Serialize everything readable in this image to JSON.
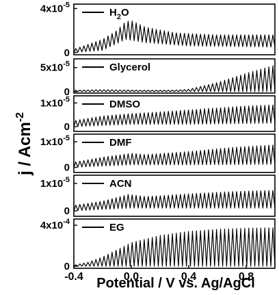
{
  "chart_data": {
    "type": "line",
    "xlabel": "Potential / V vs. Ag/AgCl",
    "ylabel": "j / Acm",
    "ylabel_superscript": "-2",
    "xlim": [
      -0.4,
      1.0
    ],
    "x_ticks": [
      "-0.4",
      "0.0",
      "0.4",
      "0.8"
    ],
    "x_tick_values": [
      -0.4,
      0.0,
      0.4,
      0.8
    ],
    "legend_placement": "top-left of each panel",
    "grid": false,
    "line_color": "#000000",
    "panels": [
      {
        "name": "H2O",
        "label_main": "H",
        "label_sub": "2",
        "label_rest": "O",
        "y_ticks": [
          {
            "value": 4e-05,
            "mantissa": "4x10",
            "exp": "-5"
          },
          {
            "value": 0,
            "label": "0"
          }
        ],
        "ylim": [
          -2e-06,
          4.4e-05
        ],
        "envelope_upper": [
          [
            -0.4,
            3e-06
          ],
          [
            -0.2,
            1.2e-05
          ],
          [
            -0.1,
            2e-05
          ],
          [
            -0.04,
            2.8e-05
          ],
          [
            0.0,
            2.9e-05
          ],
          [
            0.1,
            2.3e-05
          ],
          [
            0.3,
            1.8e-05
          ],
          [
            0.6,
            1.6e-05
          ],
          [
            1.0,
            1.6e-05
          ]
        ],
        "envelope_lower": [
          [
            -0.4,
            0.0
          ],
          [
            -0.2,
            2e-06
          ],
          [
            -0.04,
            1.2e-05
          ],
          [
            0.1,
            9e-06
          ],
          [
            0.4,
            6e-06
          ],
          [
            1.0,
            5e-06
          ]
        ]
      },
      {
        "name": "Glycerol",
        "label_main": "Glycerol",
        "y_ticks": [
          {
            "value": 5e-05,
            "mantissa": "5x10",
            "exp": "-5"
          },
          {
            "value": 0,
            "label": "0"
          }
        ],
        "ylim": [
          -3e-06,
          6.8e-05
        ],
        "envelope_upper": [
          [
            -0.4,
            3e-06
          ],
          [
            -0.2,
            4e-06
          ],
          [
            0.1,
            3e-06
          ],
          [
            0.3,
            3e-06
          ],
          [
            0.4,
            5e-06
          ],
          [
            0.6,
            1.9e-05
          ],
          [
            0.8,
            3.8e-05
          ],
          [
            1.0,
            5.5e-05
          ]
        ],
        "envelope_lower": [
          [
            -0.4,
            0.0
          ],
          [
            0.3,
            0.0
          ],
          [
            0.6,
            0.0
          ],
          [
            1.0,
            0.0
          ]
        ]
      },
      {
        "name": "DMSO",
        "label_main": "DMSO",
        "y_ticks": [
          {
            "value": 1e-05,
            "mantissa": "1x10",
            "exp": "-5"
          },
          {
            "value": 0,
            "label": "0"
          }
        ],
        "ylim": [
          -2e-06,
          1.3e-05
        ],
        "envelope_upper": [
          [
            -0.4,
            2.5e-06
          ],
          [
            -0.2,
            4.5e-06
          ],
          [
            0.0,
            5.5e-06
          ],
          [
            0.2,
            6.2e-06
          ],
          [
            0.5,
            7.5e-06
          ],
          [
            0.8,
            8.7e-06
          ],
          [
            1.0,
            9.2e-06
          ]
        ],
        "envelope_lower": [
          [
            -0.4,
            0.0
          ],
          [
            0.0,
            1e-06
          ],
          [
            0.4,
            1e-06
          ],
          [
            1.0,
            1.5e-06
          ]
        ]
      },
      {
        "name": "DMF",
        "label_main": "DMF",
        "y_ticks": [
          {
            "value": 1e-05,
            "mantissa": "1x10",
            "exp": "-5"
          },
          {
            "value": 0,
            "label": "0"
          }
        ],
        "ylim": [
          -2e-06,
          1.3e-05
        ],
        "envelope_upper": [
          [
            -0.4,
            2e-06
          ],
          [
            -0.2,
            4e-06
          ],
          [
            0.0,
            5.5e-06
          ],
          [
            0.1,
            5e-06
          ],
          [
            0.4,
            6.2e-06
          ],
          [
            0.7,
            7.8e-06
          ],
          [
            1.0,
            8.8e-06
          ]
        ],
        "envelope_lower": [
          [
            -0.4,
            0.0
          ],
          [
            0.0,
            1e-06
          ],
          [
            0.4,
            1e-06
          ],
          [
            1.0,
            1.2e-06
          ]
        ]
      },
      {
        "name": "ACN",
        "label_main": "ACN",
        "y_ticks": [
          {
            "value": 1e-05,
            "mantissa": "1x10",
            "exp": "-5"
          },
          {
            "value": 0,
            "label": "0"
          }
        ],
        "ylim": [
          -2e-06,
          1.3e-05
        ],
        "envelope_upper": [
          [
            -0.4,
            2e-06
          ],
          [
            -0.2,
            3.5e-06
          ],
          [
            -0.02,
            6e-06
          ],
          [
            0.1,
            5.2e-06
          ],
          [
            0.4,
            6.2e-06
          ],
          [
            0.7,
            7e-06
          ],
          [
            1.0,
            7.5e-06
          ]
        ],
        "envelope_lower": [
          [
            -0.4,
            0.0
          ],
          [
            0.0,
            1e-06
          ],
          [
            0.4,
            1e-06
          ],
          [
            1.0,
            1e-06
          ]
        ]
      },
      {
        "name": "EG",
        "label_main": "EG",
        "y_ticks": [
          {
            "value": 0.0004,
            "mantissa": "4x10",
            "exp": "-4"
          },
          {
            "value": 0,
            "label": "0"
          }
        ],
        "ylim": [
          -2e-05,
          0.00046
        ],
        "envelope_upper": [
          [
            -0.4,
            1e-05
          ],
          [
            -0.3,
            4e-05
          ],
          [
            -0.2,
            9e-05
          ],
          [
            -0.1,
            0.00016
          ],
          [
            0.0,
            0.00023
          ],
          [
            0.2,
            0.0003
          ],
          [
            0.4,
            0.00034
          ],
          [
            0.6,
            0.00036
          ],
          [
            0.8,
            0.00037
          ],
          [
            1.0,
            0.000375
          ]
        ],
        "envelope_lower": [
          [
            -0.4,
            0.0
          ],
          [
            1.0,
            0.0
          ]
        ]
      }
    ]
  }
}
